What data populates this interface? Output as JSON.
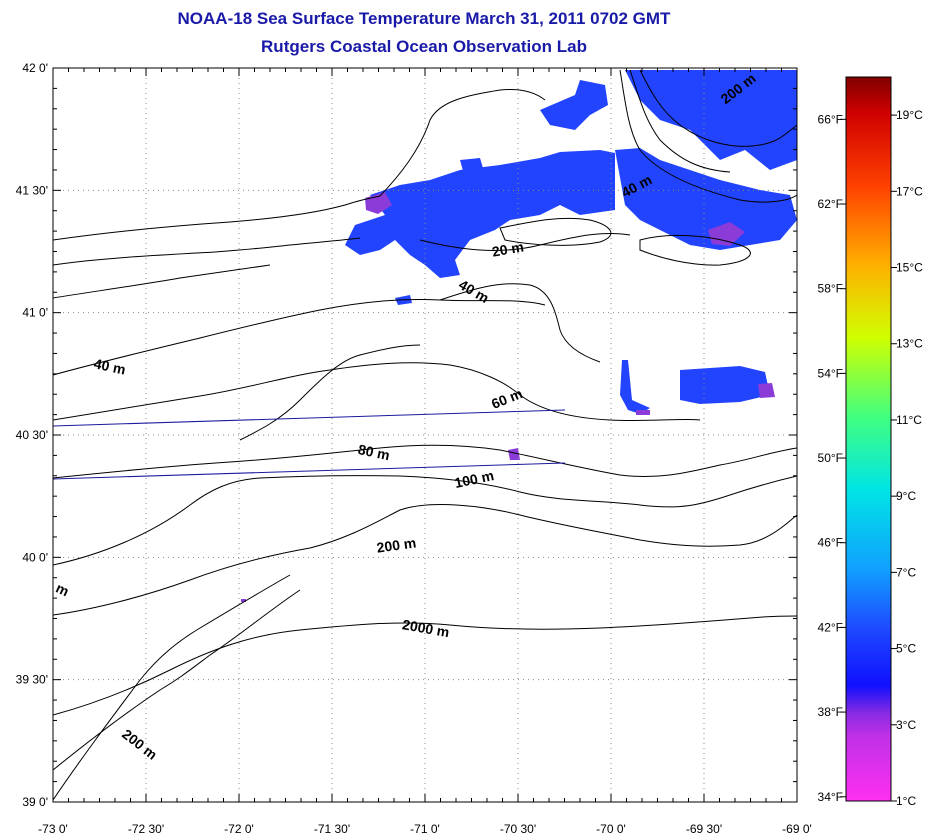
{
  "title": "NOAA-18 Sea Surface Temperature March 31, 2011 0702 GMT",
  "subtitle": "Rutgers Coastal Ocean Observation Lab",
  "lat_ticks": [
    {
      "label": "42 0'",
      "value": 42.0
    },
    {
      "label": "41 30'",
      "value": 41.5
    },
    {
      "label": "41 0'",
      "value": 41.0
    },
    {
      "label": "40 30'",
      "value": 40.5
    },
    {
      "label": "40 0'",
      "value": 40.0
    },
    {
      "label": "39 30'",
      "value": 39.5
    },
    {
      "label": "39 0'",
      "value": 39.0
    }
  ],
  "lon_ticks": [
    {
      "label": "-73 0'",
      "value": -73.0
    },
    {
      "label": "-72 30'",
      "value": -72.5
    },
    {
      "label": "-72 0'",
      "value": -72.0
    },
    {
      "label": "-71 30'",
      "value": -71.5
    },
    {
      "label": "-71 0'",
      "value": -71.0
    },
    {
      "label": "-70 30'",
      "value": -70.5
    },
    {
      "label": "-70 0'",
      "value": -70.0
    },
    {
      "label": "-69 30'",
      "value": -69.5
    },
    {
      "label": "-69 0'",
      "value": -69.0
    }
  ],
  "contour_labels": [
    {
      "text": "200 m",
      "lon": -69.3,
      "lat": 41.9,
      "angle": 38
    },
    {
      "text": "40 m",
      "lon": -69.85,
      "lat": 41.5,
      "angle": 28
    },
    {
      "text": "20 m",
      "lon": -70.55,
      "lat": 41.24,
      "angle": 10
    },
    {
      "text": "40 m",
      "lon": -70.75,
      "lat": 41.07,
      "angle": -30
    },
    {
      "text": "40 m",
      "lon": -72.7,
      "lat": 40.76,
      "angle": -12
    },
    {
      "text": "60 m",
      "lon": -70.55,
      "lat": 40.63,
      "angle": 22
    },
    {
      "text": "80 m",
      "lon": -71.28,
      "lat": 40.41,
      "angle": -12
    },
    {
      "text": "100 m",
      "lon": -70.73,
      "lat": 40.3,
      "angle": 12
    },
    {
      "text": "200 m",
      "lon": -71.15,
      "lat": 40.03,
      "angle": 8
    },
    {
      "text": "2000 m",
      "lon": -71.0,
      "lat": 39.69,
      "angle": -10
    },
    {
      "text": "200 m",
      "lon": -72.55,
      "lat": 39.22,
      "angle": -38
    },
    {
      "text": "m",
      "lon": -72.96,
      "lat": 39.85,
      "angle": -25
    }
  ],
  "colorbar": {
    "celsius": [
      "19°C",
      "17°C",
      "15°C",
      "13°C",
      "11°C",
      "9°C",
      "7°C",
      "5°C",
      "3°C",
      "1°C"
    ],
    "fahrenheit": [
      "66°F",
      "62°F",
      "58°F",
      "54°F",
      "50°F",
      "46°F",
      "42°F",
      "38°F",
      "34°F"
    ],
    "celsius_range": [
      1,
      20
    ],
    "colors": {
      "c1": "#ff2ff0",
      "c3": "#8a2be2",
      "c3b": "#1010ff",
      "c5": "#1e4bff",
      "c7": "#10a0ff",
      "c9": "#00e5e5",
      "c11": "#40ff80",
      "c13": "#d0ff00",
      "c15": "#ffb000",
      "c17": "#ff4000",
      "c19": "#d00000",
      "c20": "#800000"
    }
  },
  "sst_color": "#2244ff",
  "anomaly_color": "#8b3cd8",
  "track_color": "#1a1a9e"
}
